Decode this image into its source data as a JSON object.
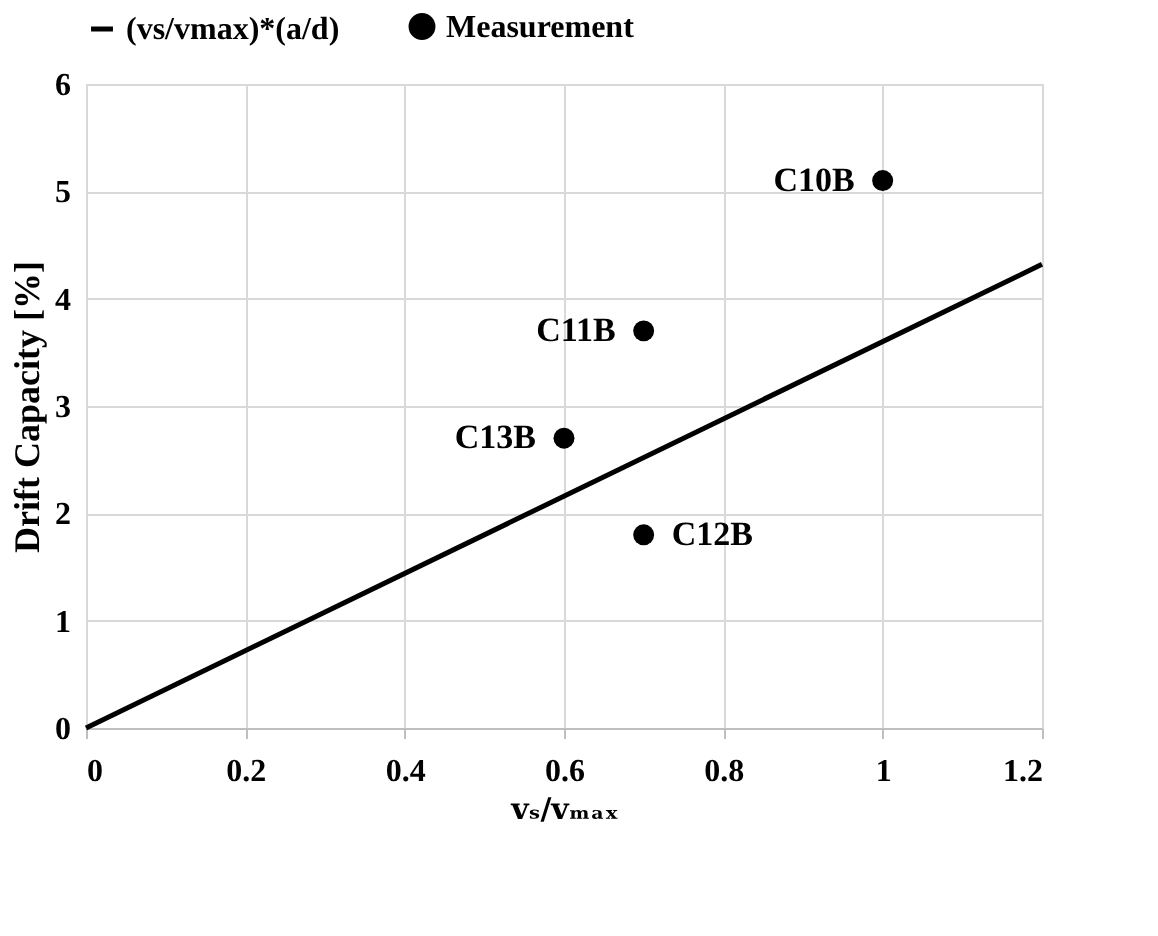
{
  "chart_data": {
    "type": "scatter",
    "xlabel": "vₛ/vₘₐₓ",
    "ylabel": "Drift Capacity [%]",
    "xlim": [
      0,
      1.2
    ],
    "xticks": [
      0,
      0.2,
      0.4,
      0.6,
      0.8,
      1,
      1.2
    ],
    "ylim": [
      0,
      6
    ],
    "yticks": [
      0,
      1,
      2,
      3,
      4,
      5,
      6
    ],
    "grid": true,
    "legend": "top",
    "series": [
      {
        "name": "(vs/vmax)*(a/d)",
        "type": "line",
        "color": "#000000",
        "line_style": "solid",
        "marker": "none",
        "x": [
          0,
          1.2
        ],
        "values": [
          0,
          4.32
        ]
      },
      {
        "name": "Measurement",
        "color": "#000000",
        "marker": "circle",
        "x": [
          1,
          0.7,
          0.6,
          0.7
        ],
        "values": [
          5.1,
          3.7,
          2.7,
          1.8
        ]
      }
    ],
    "annotations": [
      {
        "text": "C10B",
        "x": 1,
        "y": 5.1
      },
      {
        "text": "C11B",
        "x": 0.7,
        "y": 3.7
      },
      {
        "text": "C13B",
        "x": 0.6,
        "y": 2.7
      },
      {
        "text": "C12B",
        "x": 0.7,
        "y": 1.8
      }
    ]
  }
}
